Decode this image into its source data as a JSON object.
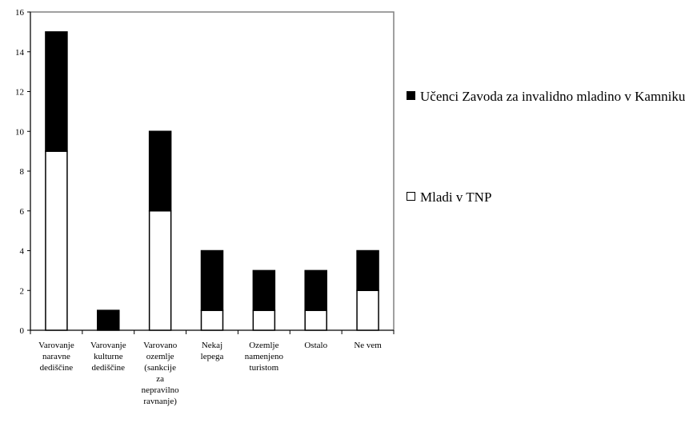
{
  "chart_data": {
    "type": "bar",
    "stacked": true,
    "categories": [
      [
        "Varovanje",
        "naravne",
        "dediščine"
      ],
      [
        "Varovanje",
        "kulturne",
        "dediščine"
      ],
      [
        "Varovano",
        "ozemlje",
        "(sankcije",
        "za",
        "nepravilno",
        "ravnanje)"
      ],
      [
        "Nekaj",
        "lepega"
      ],
      [
        "Ozemlje",
        "namenjeno",
        "turistom"
      ],
      [
        "Ostalo"
      ],
      [
        "Ne vem"
      ]
    ],
    "series": [
      {
        "name": "Mladi v TNP",
        "color": "#ffffff",
        "values": [
          9,
          0,
          6,
          1,
          1,
          1,
          2
        ]
      },
      {
        "name": "Učenci Zavoda za invalidno mladino v Kamniku",
        "color": "#000000",
        "values": [
          6,
          1,
          4,
          3,
          2,
          2,
          2
        ]
      }
    ],
    "ylim": [
      0,
      16
    ],
    "yticks": [
      "0",
      "2",
      "4",
      "6",
      "8",
      "10",
      "12",
      "14",
      "16"
    ],
    "grid": false,
    "legend_position": "right"
  },
  "legend": [
    {
      "label": "Učenci Zavoda za invalidno mladino v Kamniku",
      "color": "#000000"
    },
    {
      "label": "Mladi v TNP",
      "color": "#ffffff"
    }
  ]
}
